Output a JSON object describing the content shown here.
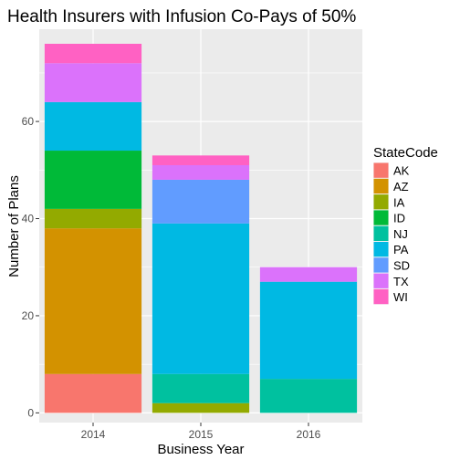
{
  "chart_data": {
    "type": "bar",
    "stacked": true,
    "title": "Health Insurers with Infusion Co-Pays of 50%",
    "xlabel": "Business Year",
    "ylabel": "Number of Plans",
    "categories": [
      "2014",
      "2015",
      "2016"
    ],
    "y_ticks": [
      0,
      20,
      40,
      60
    ],
    "ylim": [
      -2,
      79
    ],
    "grid": true,
    "legend": {
      "title": "StateCode",
      "position": "right"
    },
    "series": [
      {
        "name": "AK",
        "color": "#F8766D",
        "values": [
          8,
          0,
          0
        ]
      },
      {
        "name": "AZ",
        "color": "#D39200",
        "values": [
          30,
          0,
          0
        ]
      },
      {
        "name": "IA",
        "color": "#93AA00",
        "values": [
          4,
          2,
          0
        ]
      },
      {
        "name": "ID",
        "color": "#00BA38",
        "values": [
          12,
          0,
          0
        ]
      },
      {
        "name": "NJ",
        "color": "#00C19F",
        "values": [
          0,
          6,
          7
        ]
      },
      {
        "name": "PA",
        "color": "#00B9E3",
        "values": [
          10,
          31,
          20
        ]
      },
      {
        "name": "SD",
        "color": "#619CFF",
        "values": [
          0,
          9,
          0
        ]
      },
      {
        "name": "TX",
        "color": "#DB72FB",
        "values": [
          8,
          3,
          3
        ]
      },
      {
        "name": "WI",
        "color": "#FF61C3",
        "values": [
          4,
          2,
          0
        ]
      }
    ]
  }
}
